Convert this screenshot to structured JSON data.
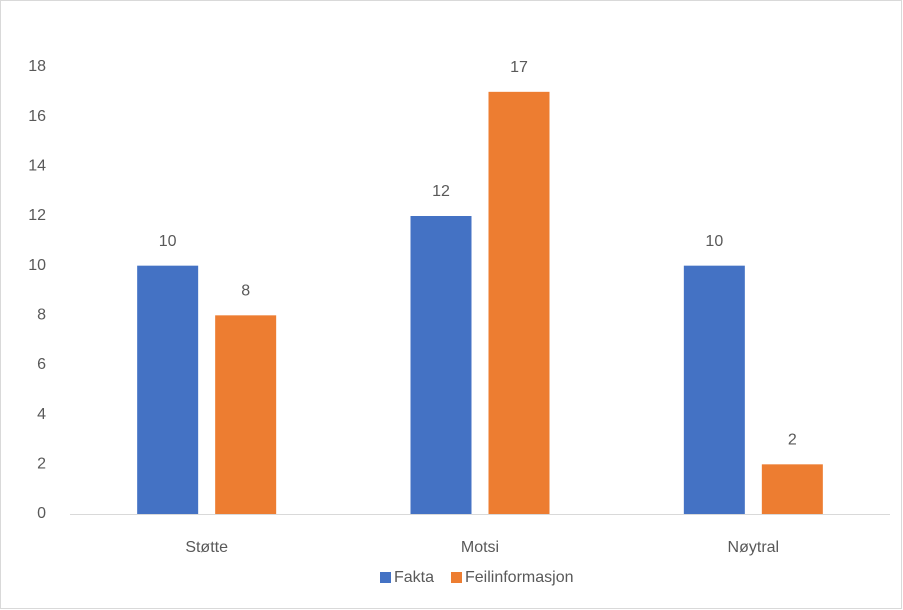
{
  "chart_data": {
    "type": "bar",
    "categories": [
      "Støtte",
      "Motsi",
      "Nøytral"
    ],
    "series": [
      {
        "name": "Fakta",
        "color": "#4472c4",
        "values": [
          10,
          12,
          10
        ]
      },
      {
        "name": "Feilinformasjon",
        "color": "#ed7d31",
        "values": [
          8,
          17,
          2
        ]
      }
    ],
    "ylim": [
      0,
      18
    ],
    "yticks": [
      0,
      2,
      4,
      6,
      8,
      10,
      12,
      14,
      16,
      18
    ],
    "grid": false,
    "legend": "bottom"
  }
}
